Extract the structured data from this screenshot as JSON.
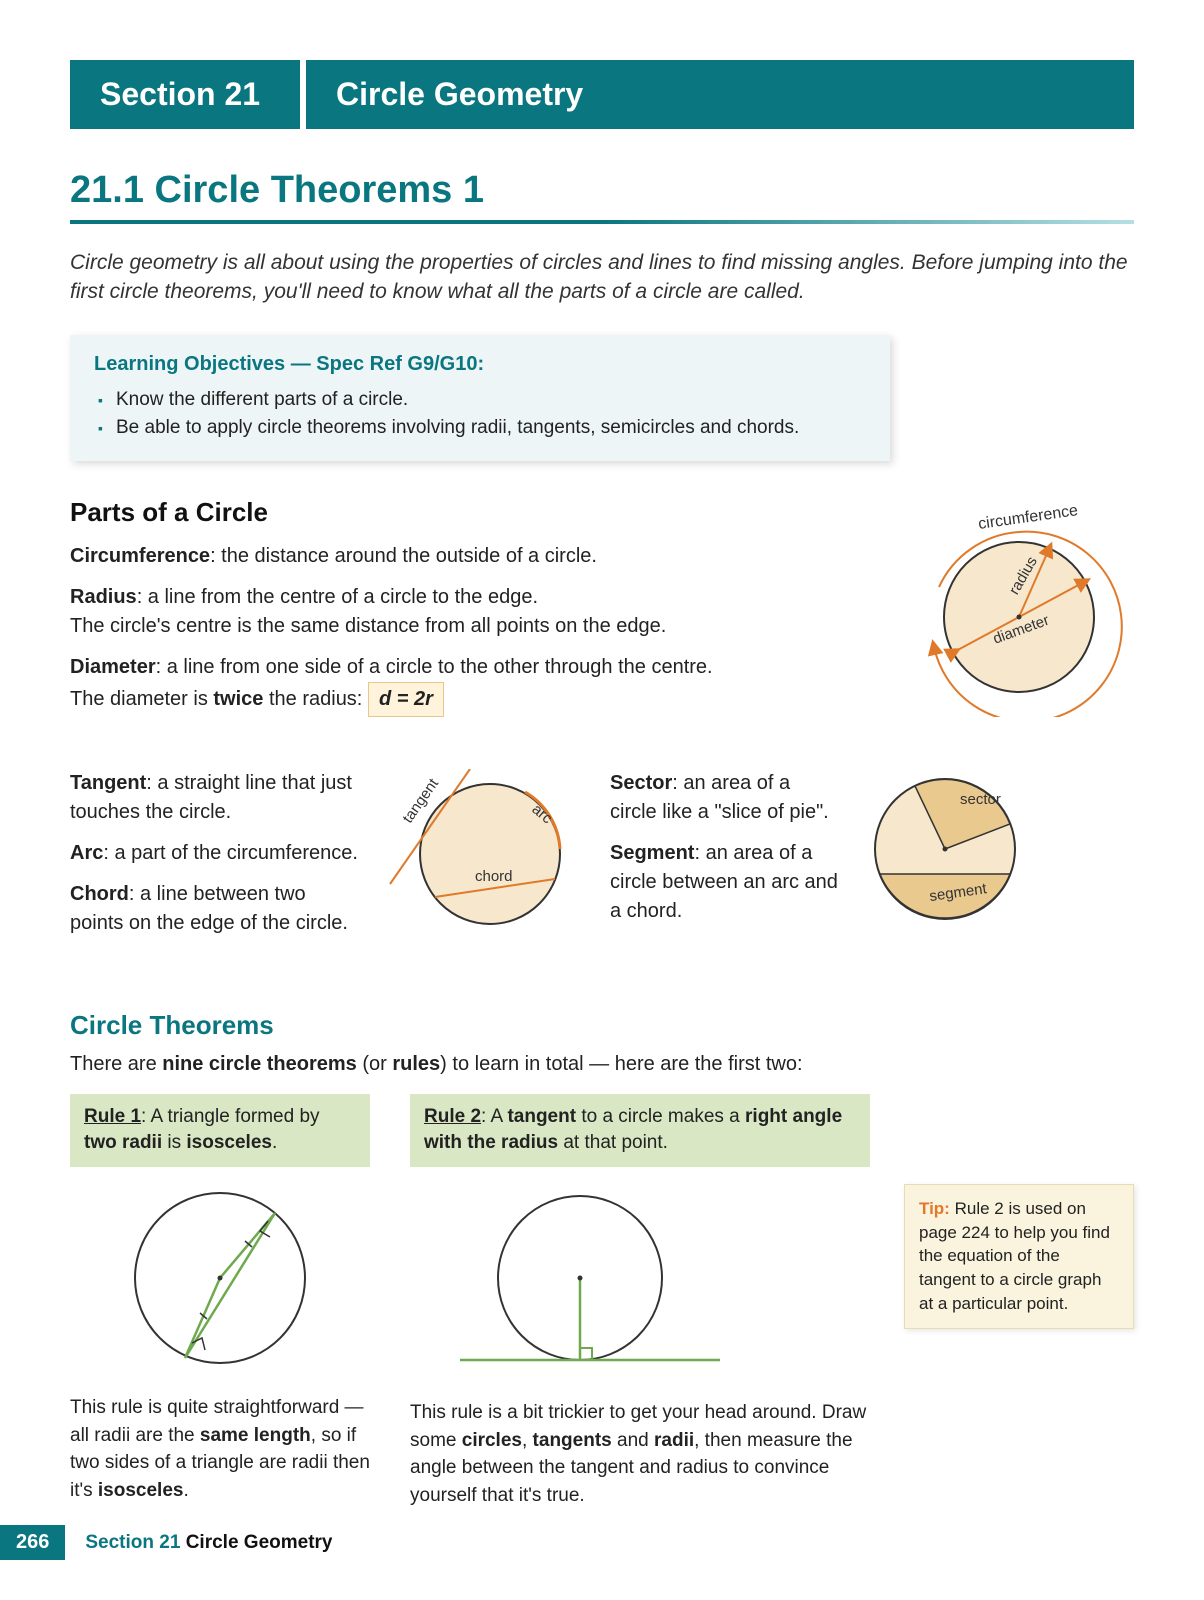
{
  "header": {
    "section_label": "Section 21",
    "section_title": "Circle Geometry"
  },
  "chapter": {
    "title": "21.1 Circle Theorems 1"
  },
  "intro": "Circle geometry is all about using the properties of circles and lines to find missing angles.  Before jumping into the first circle theorems, you'll need to know what all the parts of a circle are called.",
  "learning_objectives": {
    "title": "Learning Objectives — Spec Ref G9/G10:",
    "items": [
      "Know the different parts of a circle.",
      "Be able to apply circle theorems involving radii, tangents, semicircles and chords."
    ]
  },
  "parts": {
    "heading": "Parts of a Circle",
    "circumference": {
      "term": "Circumference",
      "def": ": the distance around the outside of a circle."
    },
    "radius": {
      "term": "Radius",
      "def": ": a line from the centre of a circle to the edge.",
      "extra": "The circle's centre is the same distance from all points on the edge."
    },
    "diameter": {
      "term": "Diameter",
      "def": ": a line from one side of a circle to the other through the centre.",
      "extra_pre": "The diameter is ",
      "extra_bold": "twice",
      "extra_post": " the radius:  ",
      "formula": "d = 2r"
    },
    "tangent": {
      "term": "Tangent",
      "def": ": a straight line that just touches the circle."
    },
    "arc": {
      "term": "Arc",
      "def": ": a part of the circumference."
    },
    "chord": {
      "term": "Chord",
      "def": ": a line between two points on the edge of the circle."
    },
    "sector": {
      "term": "Sector",
      "def": ": an area of a circle like a \"slice of pie\"."
    },
    "segment": {
      "term": "Segment",
      "def": ": an area of a circle between an arc and a chord."
    },
    "diagram1_labels": {
      "circumference": "circumference",
      "radius": "radius",
      "diameter": "diameter"
    },
    "diagram2_labels": {
      "tangent": "tangent",
      "arc": "arc",
      "chord": "chord"
    },
    "diagram3_labels": {
      "sector": "sector",
      "segment": "segment"
    }
  },
  "theorems": {
    "heading": "Circle Theorems",
    "intro_pre": "There are ",
    "intro_bold": "nine circle theorems",
    "intro_mid": " (or ",
    "intro_bold2": "rules",
    "intro_post": ") to learn in total — here are the first two:",
    "rule1": {
      "label": "Rule 1",
      "text_pre": ":  A triangle formed by ",
      "text_b1": "two radii",
      "text_mid": " is ",
      "text_b2": "isosceles",
      "text_post": ".",
      "desc": "This rule is quite straightforward — all radii are the <b>same length</b>, so if two sides of a triangle are radii then it's <b>isosceles</b>."
    },
    "rule2": {
      "label": "Rule 2",
      "text_pre": ":  A ",
      "text_b1": "tangent",
      "text_mid": " to a circle makes a ",
      "text_b2": "right angle with the radius",
      "text_post": " at that point.",
      "desc": "This rule is a bit trickier to get your head around.  Draw some <b>circles</b>, <b>tangents</b> and <b>radii</b>, then measure the angle between the tangent and radius to convince yourself that it's true."
    },
    "tip": {
      "label": "Tip:",
      "text": "  Rule 2 is used on page 224 to help you find the equation of the tangent to a circle graph at a particular point."
    }
  },
  "footer": {
    "page": "266",
    "section": "Section 21",
    "title": " Circle Geometry"
  },
  "colors": {
    "teal": "#0a7680",
    "orange": "#e07a2a",
    "fill_cream": "#f7e7cc",
    "fill_green": "#d9e7c4",
    "green_line": "#6fa94e"
  }
}
